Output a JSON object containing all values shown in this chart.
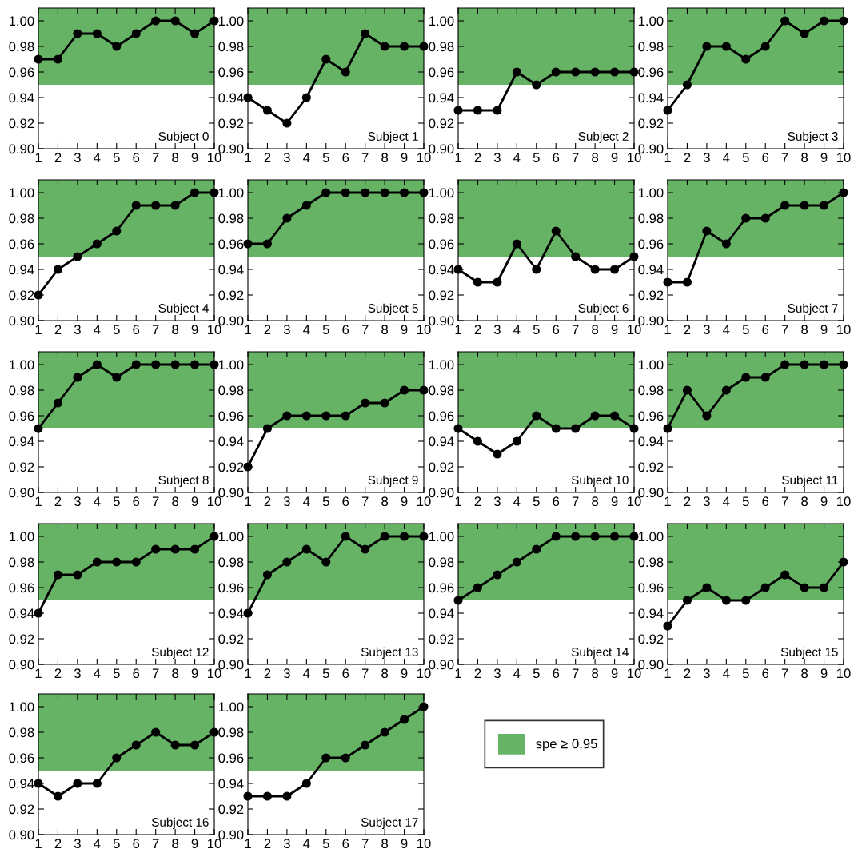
{
  "chart_data": [
    {
      "type": "line",
      "annotations": [
        "Subject 0"
      ],
      "x": [
        1,
        2,
        3,
        4,
        5,
        6,
        7,
        8,
        9,
        10
      ],
      "series": [
        {
          "color": "#000000",
          "values": [
            0.97,
            0.97,
            0.99,
            0.99,
            0.98,
            0.99,
            1.0,
            1.0,
            0.99,
            1.0
          ]
        }
      ],
      "bands": [
        {
          "axis": "y",
          "from": 0.95,
          "to": 1.01,
          "label": "spe ≥ 0.95",
          "color": "#66b366"
        }
      ],
      "xlim": [
        1,
        10
      ],
      "ylim": [
        0.9,
        1.01
      ],
      "xticks": [
        1,
        2,
        3,
        4,
        5,
        6,
        7,
        8,
        9,
        10
      ],
      "yticks": [
        {
          "value": 0.9,
          "label": "0.90"
        },
        {
          "value": 0.92,
          "label": "0.92"
        },
        {
          "value": 0.94,
          "label": "0.94"
        },
        {
          "value": 0.96,
          "label": "0.96"
        },
        {
          "value": 0.98,
          "label": "0.98"
        },
        {
          "value": 1.0,
          "label": "1.00"
        }
      ],
      "marker": "circle",
      "line_style": "solid",
      "legend": "bottom"
    },
    {
      "type": "line",
      "annotations": [
        "Subject 1"
      ],
      "x": [
        1,
        2,
        3,
        4,
        5,
        6,
        7,
        8,
        9,
        10
      ],
      "series": [
        {
          "color": "#000000",
          "values": [
            0.94,
            0.93,
            0.92,
            0.94,
            0.97,
            0.96,
            0.99,
            0.98,
            0.98,
            0.98
          ]
        }
      ],
      "bands": [
        {
          "axis": "y",
          "from": 0.95,
          "to": 1.01,
          "color": "#66b366"
        }
      ],
      "xlim": [
        1,
        10
      ],
      "ylim": [
        0.9,
        1.01
      ],
      "xticks": [
        1,
        2,
        3,
        4,
        5,
        6,
        7,
        8,
        9,
        10
      ],
      "yticks": [
        {
          "value": 0.9,
          "label": "0.90"
        },
        {
          "value": 0.92,
          "label": "0.92"
        },
        {
          "value": 0.94,
          "label": "0.94"
        },
        {
          "value": 0.96,
          "label": "0.96"
        },
        {
          "value": 0.98,
          "label": "0.98"
        },
        {
          "value": 1.0,
          "label": "1.00"
        }
      ],
      "marker": "circle",
      "line_style": "solid"
    },
    {
      "type": "line",
      "annotations": [
        "Subject 2"
      ],
      "x": [
        1,
        2,
        3,
        4,
        5,
        6,
        7,
        8,
        9,
        10
      ],
      "series": [
        {
          "color": "#000000",
          "values": [
            0.93,
            0.93,
            0.93,
            0.96,
            0.95,
            0.96,
            0.96,
            0.96,
            0.96,
            0.96
          ]
        }
      ],
      "bands": [
        {
          "axis": "y",
          "from": 0.95,
          "to": 1.01,
          "color": "#66b366"
        }
      ],
      "xlim": [
        1,
        10
      ],
      "ylim": [
        0.9,
        1.01
      ],
      "xticks": [
        1,
        2,
        3,
        4,
        5,
        6,
        7,
        8,
        9,
        10
      ],
      "yticks": [
        {
          "value": 0.9,
          "label": "0.90"
        },
        {
          "value": 0.92,
          "label": "0.92"
        },
        {
          "value": 0.94,
          "label": "0.94"
        },
        {
          "value": 0.96,
          "label": "0.96"
        },
        {
          "value": 0.98,
          "label": "0.98"
        },
        {
          "value": 1.0,
          "label": "1.00"
        }
      ],
      "marker": "circle",
      "line_style": "solid"
    },
    {
      "type": "line",
      "annotations": [
        "Subject 3"
      ],
      "x": [
        1,
        2,
        3,
        4,
        5,
        6,
        7,
        8,
        9,
        10
      ],
      "series": [
        {
          "color": "#000000",
          "values": [
            0.93,
            0.95,
            0.98,
            0.98,
            0.97,
            0.98,
            1.0,
            0.99,
            1.0,
            1.0
          ]
        }
      ],
      "bands": [
        {
          "axis": "y",
          "from": 0.95,
          "to": 1.01,
          "color": "#66b366"
        }
      ],
      "xlim": [
        1,
        10
      ],
      "ylim": [
        0.9,
        1.01
      ],
      "xticks": [
        1,
        2,
        3,
        4,
        5,
        6,
        7,
        8,
        9,
        10
      ],
      "yticks": [
        {
          "value": 0.9,
          "label": "0.90"
        },
        {
          "value": 0.92,
          "label": "0.92"
        },
        {
          "value": 0.94,
          "label": "0.94"
        },
        {
          "value": 0.96,
          "label": "0.96"
        },
        {
          "value": 0.98,
          "label": "0.98"
        },
        {
          "value": 1.0,
          "label": "1.00"
        }
      ],
      "marker": "circle",
      "line_style": "solid"
    },
    {
      "type": "line",
      "annotations": [
        "Subject 4"
      ],
      "x": [
        1,
        2,
        3,
        4,
        5,
        6,
        7,
        8,
        9,
        10
      ],
      "series": [
        {
          "color": "#000000",
          "values": [
            0.92,
            0.94,
            0.95,
            0.96,
            0.97,
            0.99,
            0.99,
            0.99,
            1.0,
            1.0
          ]
        }
      ],
      "bands": [
        {
          "axis": "y",
          "from": 0.95,
          "to": 1.01,
          "color": "#66b366"
        }
      ],
      "xlim": [
        1,
        10
      ],
      "ylim": [
        0.9,
        1.01
      ],
      "xticks": [
        1,
        2,
        3,
        4,
        5,
        6,
        7,
        8,
        9,
        10
      ],
      "yticks": [
        {
          "value": 0.9,
          "label": "0.90"
        },
        {
          "value": 0.92,
          "label": "0.92"
        },
        {
          "value": 0.94,
          "label": "0.94"
        },
        {
          "value": 0.96,
          "label": "0.96"
        },
        {
          "value": 0.98,
          "label": "0.98"
        },
        {
          "value": 1.0,
          "label": "1.00"
        }
      ],
      "marker": "circle",
      "line_style": "solid"
    },
    {
      "type": "line",
      "annotations": [
        "Subject 5"
      ],
      "x": [
        1,
        2,
        3,
        4,
        5,
        6,
        7,
        8,
        9,
        10
      ],
      "series": [
        {
          "color": "#000000",
          "values": [
            0.96,
            0.96,
            0.98,
            0.99,
            1.0,
            1.0,
            1.0,
            1.0,
            1.0,
            1.0
          ]
        }
      ],
      "bands": [
        {
          "axis": "y",
          "from": 0.95,
          "to": 1.01,
          "color": "#66b366"
        }
      ],
      "xlim": [
        1,
        10
      ],
      "ylim": [
        0.9,
        1.01
      ],
      "xticks": [
        1,
        2,
        3,
        4,
        5,
        6,
        7,
        8,
        9,
        10
      ],
      "yticks": [
        {
          "value": 0.9,
          "label": "0.90"
        },
        {
          "value": 0.92,
          "label": "0.92"
        },
        {
          "value": 0.94,
          "label": "0.94"
        },
        {
          "value": 0.96,
          "label": "0.96"
        },
        {
          "value": 0.98,
          "label": "0.98"
        },
        {
          "value": 1.0,
          "label": "1.00"
        }
      ],
      "marker": "circle",
      "line_style": "solid"
    },
    {
      "type": "line",
      "annotations": [
        "Subject 6"
      ],
      "x": [
        1,
        2,
        3,
        4,
        5,
        6,
        7,
        8,
        9,
        10
      ],
      "series": [
        {
          "color": "#000000",
          "values": [
            0.94,
            0.93,
            0.93,
            0.96,
            0.94,
            0.97,
            0.95,
            0.94,
            0.94,
            0.95
          ]
        }
      ],
      "bands": [
        {
          "axis": "y",
          "from": 0.95,
          "to": 1.01,
          "color": "#66b366"
        }
      ],
      "xlim": [
        1,
        10
      ],
      "ylim": [
        0.9,
        1.01
      ],
      "xticks": [
        1,
        2,
        3,
        4,
        5,
        6,
        7,
        8,
        9,
        10
      ],
      "yticks": [
        {
          "value": 0.9,
          "label": "0.90"
        },
        {
          "value": 0.92,
          "label": "0.92"
        },
        {
          "value": 0.94,
          "label": "0.94"
        },
        {
          "value": 0.96,
          "label": "0.96"
        },
        {
          "value": 0.98,
          "label": "0.98"
        },
        {
          "value": 1.0,
          "label": "1.00"
        }
      ],
      "marker": "circle",
      "line_style": "solid"
    },
    {
      "type": "line",
      "annotations": [
        "Subject 7"
      ],
      "x": [
        1,
        2,
        3,
        4,
        5,
        6,
        7,
        8,
        9,
        10
      ],
      "series": [
        {
          "color": "#000000",
          "values": [
            0.93,
            0.93,
            0.97,
            0.96,
            0.98,
            0.98,
            0.99,
            0.99,
            0.99,
            1.0
          ]
        }
      ],
      "bands": [
        {
          "axis": "y",
          "from": 0.95,
          "to": 1.01,
          "color": "#66b366"
        }
      ],
      "xlim": [
        1,
        10
      ],
      "ylim": [
        0.9,
        1.01
      ],
      "xticks": [
        1,
        2,
        3,
        4,
        5,
        6,
        7,
        8,
        9,
        10
      ],
      "yticks": [
        {
          "value": 0.9,
          "label": "0.90"
        },
        {
          "value": 0.92,
          "label": "0.92"
        },
        {
          "value": 0.94,
          "label": "0.94"
        },
        {
          "value": 0.96,
          "label": "0.96"
        },
        {
          "value": 0.98,
          "label": "0.98"
        },
        {
          "value": 1.0,
          "label": "1.00"
        }
      ],
      "marker": "circle",
      "line_style": "solid"
    },
    {
      "type": "line",
      "annotations": [
        "Subject 8"
      ],
      "x": [
        1,
        2,
        3,
        4,
        5,
        6,
        7,
        8,
        9,
        10
      ],
      "series": [
        {
          "color": "#000000",
          "values": [
            0.95,
            0.97,
            0.99,
            1.0,
            0.99,
            1.0,
            1.0,
            1.0,
            1.0,
            1.0
          ]
        }
      ],
      "bands": [
        {
          "axis": "y",
          "from": 0.95,
          "to": 1.01,
          "color": "#66b366"
        }
      ],
      "xlim": [
        1,
        10
      ],
      "ylim": [
        0.9,
        1.01
      ],
      "xticks": [
        1,
        2,
        3,
        4,
        5,
        6,
        7,
        8,
        9,
        10
      ],
      "yticks": [
        {
          "value": 0.9,
          "label": "0.90"
        },
        {
          "value": 0.92,
          "label": "0.92"
        },
        {
          "value": 0.94,
          "label": "0.94"
        },
        {
          "value": 0.96,
          "label": "0.96"
        },
        {
          "value": 0.98,
          "label": "0.98"
        },
        {
          "value": 1.0,
          "label": "1.00"
        }
      ],
      "marker": "circle",
      "line_style": "solid"
    },
    {
      "type": "line",
      "annotations": [
        "Subject 9"
      ],
      "x": [
        1,
        2,
        3,
        4,
        5,
        6,
        7,
        8,
        9,
        10
      ],
      "series": [
        {
          "color": "#000000",
          "values": [
            0.92,
            0.95,
            0.96,
            0.96,
            0.96,
            0.96,
            0.97,
            0.97,
            0.98,
            0.98
          ]
        }
      ],
      "bands": [
        {
          "axis": "y",
          "from": 0.95,
          "to": 1.01,
          "color": "#66b366"
        }
      ],
      "xlim": [
        1,
        10
      ],
      "ylim": [
        0.9,
        1.01
      ],
      "xticks": [
        1,
        2,
        3,
        4,
        5,
        6,
        7,
        8,
        9,
        10
      ],
      "yticks": [
        {
          "value": 0.9,
          "label": "0.90"
        },
        {
          "value": 0.92,
          "label": "0.92"
        },
        {
          "value": 0.94,
          "label": "0.94"
        },
        {
          "value": 0.96,
          "label": "0.96"
        },
        {
          "value": 0.98,
          "label": "0.98"
        },
        {
          "value": 1.0,
          "label": "1.00"
        }
      ],
      "marker": "circle",
      "line_style": "solid"
    },
    {
      "type": "line",
      "annotations": [
        "Subject 10"
      ],
      "x": [
        1,
        2,
        3,
        4,
        5,
        6,
        7,
        8,
        9,
        10
      ],
      "series": [
        {
          "color": "#000000",
          "values": [
            0.95,
            0.94,
            0.93,
            0.94,
            0.96,
            0.95,
            0.95,
            0.96,
            0.96,
            0.95
          ]
        }
      ],
      "bands": [
        {
          "axis": "y",
          "from": 0.95,
          "to": 1.01,
          "color": "#66b366"
        }
      ],
      "xlim": [
        1,
        10
      ],
      "ylim": [
        0.9,
        1.01
      ],
      "xticks": [
        1,
        2,
        3,
        4,
        5,
        6,
        7,
        8,
        9,
        10
      ],
      "yticks": [
        {
          "value": 0.9,
          "label": "0.90"
        },
        {
          "value": 0.92,
          "label": "0.92"
        },
        {
          "value": 0.94,
          "label": "0.94"
        },
        {
          "value": 0.96,
          "label": "0.96"
        },
        {
          "value": 0.98,
          "label": "0.98"
        },
        {
          "value": 1.0,
          "label": "1.00"
        }
      ],
      "marker": "circle",
      "line_style": "solid"
    },
    {
      "type": "line",
      "annotations": [
        "Subject 11"
      ],
      "x": [
        1,
        2,
        3,
        4,
        5,
        6,
        7,
        8,
        9,
        10
      ],
      "series": [
        {
          "color": "#000000",
          "values": [
            0.95,
            0.98,
            0.96,
            0.98,
            0.99,
            0.99,
            1.0,
            1.0,
            1.0,
            1.0
          ]
        }
      ],
      "bands": [
        {
          "axis": "y",
          "from": 0.95,
          "to": 1.01,
          "color": "#66b366"
        }
      ],
      "xlim": [
        1,
        10
      ],
      "ylim": [
        0.9,
        1.01
      ],
      "xticks": [
        1,
        2,
        3,
        4,
        5,
        6,
        7,
        8,
        9,
        10
      ],
      "yticks": [
        {
          "value": 0.9,
          "label": "0.90"
        },
        {
          "value": 0.92,
          "label": "0.92"
        },
        {
          "value": 0.94,
          "label": "0.94"
        },
        {
          "value": 0.96,
          "label": "0.96"
        },
        {
          "value": 0.98,
          "label": "0.98"
        },
        {
          "value": 1.0,
          "label": "1.00"
        }
      ],
      "marker": "circle",
      "line_style": "solid"
    },
    {
      "type": "line",
      "annotations": [
        "Subject 12"
      ],
      "x": [
        1,
        2,
        3,
        4,
        5,
        6,
        7,
        8,
        9,
        10
      ],
      "series": [
        {
          "color": "#000000",
          "values": [
            0.94,
            0.97,
            0.97,
            0.98,
            0.98,
            0.98,
            0.99,
            0.99,
            0.99,
            1.0
          ]
        }
      ],
      "bands": [
        {
          "axis": "y",
          "from": 0.95,
          "to": 1.01,
          "color": "#66b366"
        }
      ],
      "xlim": [
        1,
        10
      ],
      "ylim": [
        0.9,
        1.01
      ],
      "xticks": [
        1,
        2,
        3,
        4,
        5,
        6,
        7,
        8,
        9,
        10
      ],
      "yticks": [
        {
          "value": 0.9,
          "label": "0.90"
        },
        {
          "value": 0.92,
          "label": "0.92"
        },
        {
          "value": 0.94,
          "label": "0.94"
        },
        {
          "value": 0.96,
          "label": "0.96"
        },
        {
          "value": 0.98,
          "label": "0.98"
        },
        {
          "value": 1.0,
          "label": "1.00"
        }
      ],
      "marker": "circle",
      "line_style": "solid"
    },
    {
      "type": "line",
      "annotations": [
        "Subject 13"
      ],
      "x": [
        1,
        2,
        3,
        4,
        5,
        6,
        7,
        8,
        9,
        10
      ],
      "series": [
        {
          "color": "#000000",
          "values": [
            0.94,
            0.97,
            0.98,
            0.99,
            0.98,
            1.0,
            0.99,
            1.0,
            1.0,
            1.0
          ]
        }
      ],
      "bands": [
        {
          "axis": "y",
          "from": 0.95,
          "to": 1.01,
          "color": "#66b366"
        }
      ],
      "xlim": [
        1,
        10
      ],
      "ylim": [
        0.9,
        1.01
      ],
      "xticks": [
        1,
        2,
        3,
        4,
        5,
        6,
        7,
        8,
        9,
        10
      ],
      "yticks": [
        {
          "value": 0.9,
          "label": "0.90"
        },
        {
          "value": 0.92,
          "label": "0.92"
        },
        {
          "value": 0.94,
          "label": "0.94"
        },
        {
          "value": 0.96,
          "label": "0.96"
        },
        {
          "value": 0.98,
          "label": "0.98"
        },
        {
          "value": 1.0,
          "label": "1.00"
        }
      ],
      "marker": "circle",
      "line_style": "solid"
    },
    {
      "type": "line",
      "annotations": [
        "Subject 14"
      ],
      "x": [
        1,
        2,
        3,
        4,
        5,
        6,
        7,
        8,
        9,
        10
      ],
      "series": [
        {
          "color": "#000000",
          "values": [
            0.95,
            0.96,
            0.97,
            0.98,
            0.99,
            1.0,
            1.0,
            1.0,
            1.0,
            1.0
          ]
        }
      ],
      "bands": [
        {
          "axis": "y",
          "from": 0.95,
          "to": 1.01,
          "color": "#66b366"
        }
      ],
      "xlim": [
        1,
        10
      ],
      "ylim": [
        0.9,
        1.01
      ],
      "xticks": [
        1,
        2,
        3,
        4,
        5,
        6,
        7,
        8,
        9,
        10
      ],
      "yticks": [
        {
          "value": 0.9,
          "label": "0.90"
        },
        {
          "value": 0.92,
          "label": "0.92"
        },
        {
          "value": 0.94,
          "label": "0.94"
        },
        {
          "value": 0.96,
          "label": "0.96"
        },
        {
          "value": 0.98,
          "label": "0.98"
        },
        {
          "value": 1.0,
          "label": "1.00"
        }
      ],
      "marker": "circle",
      "line_style": "solid"
    },
    {
      "type": "line",
      "annotations": [
        "Subject 15"
      ],
      "x": [
        1,
        2,
        3,
        4,
        5,
        6,
        7,
        8,
        9,
        10
      ],
      "series": [
        {
          "color": "#000000",
          "values": [
            0.93,
            0.95,
            0.96,
            0.95,
            0.95,
            0.96,
            0.97,
            0.96,
            0.96,
            0.98
          ]
        }
      ],
      "bands": [
        {
          "axis": "y",
          "from": 0.95,
          "to": 1.01,
          "color": "#66b366"
        }
      ],
      "xlim": [
        1,
        10
      ],
      "ylim": [
        0.9,
        1.01
      ],
      "xticks": [
        1,
        2,
        3,
        4,
        5,
        6,
        7,
        8,
        9,
        10
      ],
      "yticks": [
        {
          "value": 0.9,
          "label": "0.90"
        },
        {
          "value": 0.92,
          "label": "0.92"
        },
        {
          "value": 0.94,
          "label": "0.94"
        },
        {
          "value": 0.96,
          "label": "0.96"
        },
        {
          "value": 0.98,
          "label": "0.98"
        },
        {
          "value": 1.0,
          "label": "1.00"
        }
      ],
      "marker": "circle",
      "line_style": "solid"
    },
    {
      "type": "line",
      "annotations": [
        "Subject 16"
      ],
      "x": [
        1,
        2,
        3,
        4,
        5,
        6,
        7,
        8,
        9,
        10
      ],
      "series": [
        {
          "color": "#000000",
          "values": [
            0.94,
            0.93,
            0.94,
            0.94,
            0.96,
            0.97,
            0.98,
            0.97,
            0.97,
            0.98
          ]
        }
      ],
      "bands": [
        {
          "axis": "y",
          "from": 0.95,
          "to": 1.01,
          "color": "#66b366"
        }
      ],
      "xlim": [
        1,
        10
      ],
      "ylim": [
        0.9,
        1.01
      ],
      "xticks": [
        1,
        2,
        3,
        4,
        5,
        6,
        7,
        8,
        9,
        10
      ],
      "yticks": [
        {
          "value": 0.9,
          "label": "0.90"
        },
        {
          "value": 0.92,
          "label": "0.92"
        },
        {
          "value": 0.94,
          "label": "0.94"
        },
        {
          "value": 0.96,
          "label": "0.96"
        },
        {
          "value": 0.98,
          "label": "0.98"
        },
        {
          "value": 1.0,
          "label": "1.00"
        }
      ],
      "marker": "circle",
      "line_style": "solid"
    },
    {
      "type": "line",
      "annotations": [
        "Subject 17"
      ],
      "x": [
        1,
        2,
        3,
        4,
        5,
        6,
        7,
        8,
        9,
        10
      ],
      "series": [
        {
          "color": "#000000",
          "values": [
            0.93,
            0.93,
            0.93,
            0.94,
            0.96,
            0.96,
            0.97,
            0.98,
            0.99,
            1.0
          ]
        }
      ],
      "bands": [
        {
          "axis": "y",
          "from": 0.95,
          "to": 1.01,
          "color": "#66b366"
        }
      ],
      "xlim": [
        1,
        10
      ],
      "ylim": [
        0.9,
        1.01
      ],
      "xticks": [
        1,
        2,
        3,
        4,
        5,
        6,
        7,
        8,
        9,
        10
      ],
      "yticks": [
        {
          "value": 0.9,
          "label": "0.90"
        },
        {
          "value": 0.92,
          "label": "0.92"
        },
        {
          "value": 0.94,
          "label": "0.94"
        },
        {
          "value": 0.96,
          "label": "0.96"
        },
        {
          "value": 0.98,
          "label": "0.98"
        },
        {
          "value": 1.0,
          "label": "1.00"
        }
      ],
      "marker": "circle",
      "line_style": "solid"
    }
  ]
}
